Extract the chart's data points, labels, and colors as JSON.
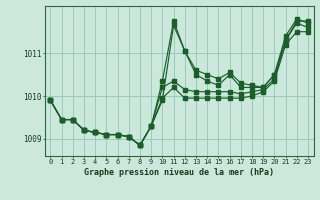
{
  "title": "Graphe pression niveau de la mer (hPa)",
  "bg_color": "#cce8dc",
  "grid_color": "#99ccbb",
  "line_color": "#1a5e2a",
  "xlim": [
    -0.5,
    23.5
  ],
  "ylim": [
    1008.6,
    1012.1
  ],
  "xticks": [
    0,
    1,
    2,
    3,
    4,
    5,
    6,
    7,
    8,
    9,
    10,
    11,
    12,
    13,
    14,
    15,
    16,
    17,
    18,
    19,
    20,
    21,
    22,
    23
  ],
  "yticks": [
    1009,
    1010,
    1011
  ],
  "series": [
    [
      1009.9,
      1009.45,
      1009.45,
      1009.2,
      1009.15,
      1009.1,
      1009.1,
      1009.05,
      1008.85,
      1009.3,
      1010.35,
      1011.75,
      1011.05,
      1010.6,
      1010.5,
      1010.4,
      1010.55,
      1010.3,
      1010.25,
      1010.2,
      1010.5,
      1011.4,
      1011.8,
      1011.7
    ],
    [
      1009.9,
      1009.45,
      1009.45,
      1009.2,
      1009.15,
      1009.1,
      1009.1,
      1009.05,
      1008.85,
      1009.3,
      1010.2,
      1010.35,
      1010.15,
      1010.1,
      1010.1,
      1010.1,
      1010.1,
      1010.05,
      1010.1,
      1010.15,
      1010.4,
      1011.3,
      1011.7,
      1011.6
    ],
    [
      1009.9,
      1009.45,
      1009.45,
      1009.2,
      1009.15,
      1009.1,
      1009.1,
      1009.05,
      1008.85,
      1009.3,
      1009.95,
      1010.2,
      1009.95,
      1009.95,
      1009.95,
      1009.95,
      1009.95,
      1009.95,
      1010.0,
      1010.1,
      1010.35,
      1011.2,
      1011.5,
      1011.5
    ],
    [
      1009.9,
      1009.45,
      1009.45,
      1009.2,
      1009.15,
      1009.1,
      1009.1,
      1009.05,
      1008.85,
      1009.3,
      1009.9,
      1011.65,
      1011.05,
      1010.5,
      1010.35,
      1010.25,
      1010.5,
      1010.2,
      1010.2,
      1010.2,
      1010.5,
      1011.3,
      1011.75,
      1011.75
    ]
  ]
}
